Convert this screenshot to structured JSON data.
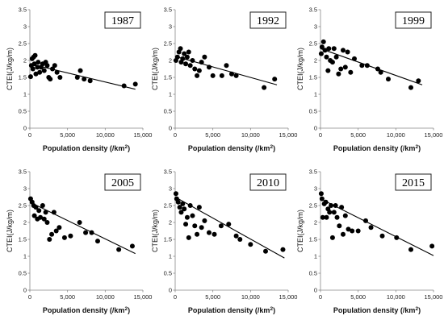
{
  "chart_data": [
    {
      "type": "scatter",
      "year_label": "1987",
      "xlabel": "Population density (/km²)",
      "ylabel": "CTEI(J/kg/m)",
      "xlim": [
        0,
        15000
      ],
      "ylim": [
        0,
        3.5
      ],
      "xticks": [
        "0",
        "5,000",
        "10,000",
        "15,000"
      ],
      "yticks": [
        "0",
        "0.5",
        "1",
        "1.5",
        "2",
        "2.5",
        "3",
        "3.5"
      ],
      "trendline": {
        "x": [
          0,
          14000
        ],
        "y": [
          1.9,
          1.15
        ]
      },
      "points": [
        {
          "x": 100,
          "y": 1.52
        },
        {
          "x": 200,
          "y": 1.85
        },
        {
          "x": 300,
          "y": 2.05
        },
        {
          "x": 400,
          "y": 1.75
        },
        {
          "x": 500,
          "y": 2.1
        },
        {
          "x": 600,
          "y": 1.9
        },
        {
          "x": 700,
          "y": 2.15
        },
        {
          "x": 800,
          "y": 1.6
        },
        {
          "x": 1000,
          "y": 1.8
        },
        {
          "x": 1100,
          "y": 1.95
        },
        {
          "x": 1300,
          "y": 1.65
        },
        {
          "x": 1500,
          "y": 1.8
        },
        {
          "x": 1700,
          "y": 1.9
        },
        {
          "x": 1900,
          "y": 1.7
        },
        {
          "x": 2100,
          "y": 1.95
        },
        {
          "x": 2300,
          "y": 1.85
        },
        {
          "x": 2500,
          "y": 1.5
        },
        {
          "x": 2700,
          "y": 1.45
        },
        {
          "x": 3000,
          "y": 1.75
        },
        {
          "x": 3300,
          "y": 1.85
        },
        {
          "x": 3600,
          "y": 1.65
        },
        {
          "x": 4000,
          "y": 1.5
        },
        {
          "x": 6300,
          "y": 1.5
        },
        {
          "x": 6700,
          "y": 1.7
        },
        {
          "x": 7200,
          "y": 1.45
        },
        {
          "x": 8000,
          "y": 1.4
        },
        {
          "x": 12500,
          "y": 1.25
        },
        {
          "x": 14000,
          "y": 1.3
        }
      ]
    },
    {
      "type": "scatter",
      "year_label": "1992",
      "xlabel": "Population density (/km²)",
      "ylabel": "CTEI(J/kg/m)",
      "xlim": [
        0,
        15000
      ],
      "ylim": [
        0,
        3.5
      ],
      "xticks": [
        "0",
        "5,000",
        "10,000",
        "15,000"
      ],
      "yticks": [
        "0",
        "0.5",
        "1",
        "1.5",
        "2",
        "2.5",
        "3",
        "3.5"
      ],
      "trendline": {
        "x": [
          0,
          13500
        ],
        "y": [
          2.12,
          1.28
        ]
      },
      "points": [
        {
          "x": 100,
          "y": 2.0
        },
        {
          "x": 300,
          "y": 2.1
        },
        {
          "x": 500,
          "y": 2.25
        },
        {
          "x": 700,
          "y": 2.35
        },
        {
          "x": 800,
          "y": 1.95
        },
        {
          "x": 1000,
          "y": 2.05
        },
        {
          "x": 1200,
          "y": 2.2
        },
        {
          "x": 1400,
          "y": 1.9
        },
        {
          "x": 1600,
          "y": 2.1
        },
        {
          "x": 1800,
          "y": 2.25
        },
        {
          "x": 2000,
          "y": 1.85
        },
        {
          "x": 2300,
          "y": 2.0
        },
        {
          "x": 2600,
          "y": 1.75
        },
        {
          "x": 2900,
          "y": 1.55
        },
        {
          "x": 3200,
          "y": 1.7
        },
        {
          "x": 3500,
          "y": 1.95
        },
        {
          "x": 3900,
          "y": 2.1
        },
        {
          "x": 4500,
          "y": 1.8
        },
        {
          "x": 5000,
          "y": 1.55
        },
        {
          "x": 6200,
          "y": 1.55
        },
        {
          "x": 6800,
          "y": 1.85
        },
        {
          "x": 7500,
          "y": 1.6
        },
        {
          "x": 8100,
          "y": 1.55
        },
        {
          "x": 11800,
          "y": 1.2
        },
        {
          "x": 13200,
          "y": 1.45
        }
      ]
    },
    {
      "type": "scatter",
      "year_label": "1999",
      "xlabel": "Population density (/km²)",
      "ylabel": "CTEI(J/kg/m)",
      "xlim": [
        0,
        15000
      ],
      "ylim": [
        0,
        3.5
      ],
      "xticks": [
        "0",
        "5,000",
        "10,000",
        "15,000"
      ],
      "yticks": [
        "0",
        "0.5",
        "1",
        "1.5",
        "2",
        "2.5",
        "3",
        "3.5"
      ],
      "trendline": {
        "x": [
          0,
          13500
        ],
        "y": [
          2.35,
          1.28
        ]
      },
      "points": [
        {
          "x": 100,
          "y": 2.2
        },
        {
          "x": 200,
          "y": 2.4
        },
        {
          "x": 400,
          "y": 2.55
        },
        {
          "x": 600,
          "y": 2.3
        },
        {
          "x": 800,
          "y": 2.1
        },
        {
          "x": 1000,
          "y": 1.7
        },
        {
          "x": 1100,
          "y": 2.35
        },
        {
          "x": 1300,
          "y": 2.0
        },
        {
          "x": 1600,
          "y": 1.95
        },
        {
          "x": 1800,
          "y": 2.35
        },
        {
          "x": 2100,
          "y": 2.1
        },
        {
          "x": 2400,
          "y": 1.6
        },
        {
          "x": 2700,
          "y": 1.75
        },
        {
          "x": 3000,
          "y": 2.3
        },
        {
          "x": 3300,
          "y": 1.8
        },
        {
          "x": 3600,
          "y": 2.25
        },
        {
          "x": 4000,
          "y": 1.65
        },
        {
          "x": 4500,
          "y": 2.05
        },
        {
          "x": 5500,
          "y": 1.85
        },
        {
          "x": 6200,
          "y": 1.85
        },
        {
          "x": 7600,
          "y": 1.75
        },
        {
          "x": 8000,
          "y": 1.65
        },
        {
          "x": 9000,
          "y": 1.45
        },
        {
          "x": 12000,
          "y": 1.2
        },
        {
          "x": 13000,
          "y": 1.4
        }
      ]
    },
    {
      "type": "scatter",
      "year_label": "2005",
      "xlabel": "Population density (/km²)",
      "ylabel": "CTEI(J/kg/m)",
      "xlim": [
        0,
        15000
      ],
      "ylim": [
        0,
        3.5
      ],
      "xticks": [
        "0",
        "5,000",
        "10,000",
        "15,000"
      ],
      "yticks": [
        "0",
        "0.5",
        "1",
        "1.5",
        "2",
        "2.5",
        "3",
        "3.5"
      ],
      "trendline": {
        "x": [
          0,
          14000
        ],
        "y": [
          2.6,
          1.08
        ]
      },
      "points": [
        {
          "x": 100,
          "y": 2.7
        },
        {
          "x": 300,
          "y": 2.6
        },
        {
          "x": 500,
          "y": 2.5
        },
        {
          "x": 600,
          "y": 2.2
        },
        {
          "x": 800,
          "y": 2.45
        },
        {
          "x": 1000,
          "y": 2.1
        },
        {
          "x": 1200,
          "y": 2.35
        },
        {
          "x": 1400,
          "y": 2.15
        },
        {
          "x": 1700,
          "y": 2.5
        },
        {
          "x": 1900,
          "y": 2.1
        },
        {
          "x": 2100,
          "y": 2.3
        },
        {
          "x": 2300,
          "y": 2.0
        },
        {
          "x": 2600,
          "y": 1.5
        },
        {
          "x": 2900,
          "y": 1.65
        },
        {
          "x": 3200,
          "y": 2.3
        },
        {
          "x": 3500,
          "y": 1.75
        },
        {
          "x": 3900,
          "y": 1.85
        },
        {
          "x": 4600,
          "y": 1.55
        },
        {
          "x": 5400,
          "y": 1.6
        },
        {
          "x": 6600,
          "y": 2.0
        },
        {
          "x": 7400,
          "y": 1.7
        },
        {
          "x": 8200,
          "y": 1.7
        },
        {
          "x": 9000,
          "y": 1.45
        },
        {
          "x": 11800,
          "y": 1.2
        },
        {
          "x": 13600,
          "y": 1.3
        }
      ]
    },
    {
      "type": "scatter",
      "year_label": "2010",
      "xlabel": "Population density (/km²)",
      "ylabel": "CTEI(J/kg/m)",
      "xlim": [
        0,
        15000
      ],
      "ylim": [
        0,
        3.5
      ],
      "xticks": [
        "0",
        "5,000",
        "10,000",
        "15,000"
      ],
      "yticks": [
        "0",
        "0.5",
        "1",
        "1.5",
        "2",
        "2.5",
        "3",
        "3.5"
      ],
      "trendline": {
        "x": [
          0,
          14500
        ],
        "y": [
          2.75,
          0.95
        ]
      },
      "points": [
        {
          "x": 100,
          "y": 2.85
        },
        {
          "x": 200,
          "y": 2.7
        },
        {
          "x": 400,
          "y": 2.6
        },
        {
          "x": 600,
          "y": 2.45
        },
        {
          "x": 800,
          "y": 2.3
        },
        {
          "x": 1000,
          "y": 2.55
        },
        {
          "x": 1200,
          "y": 2.4
        },
        {
          "x": 1400,
          "y": 1.95
        },
        {
          "x": 1600,
          "y": 2.15
        },
        {
          "x": 1800,
          "y": 1.55
        },
        {
          "x": 2000,
          "y": 2.5
        },
        {
          "x": 2300,
          "y": 2.2
        },
        {
          "x": 2600,
          "y": 1.9
        },
        {
          "x": 2900,
          "y": 1.65
        },
        {
          "x": 3200,
          "y": 2.45
        },
        {
          "x": 3500,
          "y": 1.85
        },
        {
          "x": 3900,
          "y": 2.05
        },
        {
          "x": 4500,
          "y": 1.7
        },
        {
          "x": 5200,
          "y": 1.65
        },
        {
          "x": 6100,
          "y": 1.9
        },
        {
          "x": 7100,
          "y": 1.95
        },
        {
          "x": 8100,
          "y": 1.6
        },
        {
          "x": 8600,
          "y": 1.5
        },
        {
          "x": 10000,
          "y": 1.35
        },
        {
          "x": 12000,
          "y": 1.15
        },
        {
          "x": 14300,
          "y": 1.2
        }
      ]
    },
    {
      "type": "scatter",
      "year_label": "2015",
      "xlabel": "Population density (/km²)",
      "ylabel": "CTEI(J/kg/m)",
      "xlim": [
        0,
        15000
      ],
      "ylim": [
        0,
        3.5
      ],
      "xticks": [
        "0",
        "5,000",
        "10,000",
        "15,000"
      ],
      "yticks": [
        "0",
        "0.5",
        "1",
        "1.5",
        "2",
        "2.5",
        "3",
        "3.5"
      ],
      "trendline": {
        "x": [
          0,
          15000
        ],
        "y": [
          2.7,
          1.02
        ]
      },
      "points": [
        {
          "x": 100,
          "y": 2.85
        },
        {
          "x": 200,
          "y": 2.7
        },
        {
          "x": 300,
          "y": 2.15
        },
        {
          "x": 500,
          "y": 2.55
        },
        {
          "x": 700,
          "y": 2.6
        },
        {
          "x": 800,
          "y": 2.15
        },
        {
          "x": 1000,
          "y": 2.4
        },
        {
          "x": 1200,
          "y": 2.3
        },
        {
          "x": 1400,
          "y": 2.5
        },
        {
          "x": 1600,
          "y": 1.55
        },
        {
          "x": 1800,
          "y": 2.3
        },
        {
          "x": 2000,
          "y": 2.5
        },
        {
          "x": 2200,
          "y": 2.15
        },
        {
          "x": 2500,
          "y": 1.9
        },
        {
          "x": 2800,
          "y": 2.45
        },
        {
          "x": 3000,
          "y": 1.65
        },
        {
          "x": 3300,
          "y": 2.2
        },
        {
          "x": 3700,
          "y": 1.8
        },
        {
          "x": 4200,
          "y": 1.75
        },
        {
          "x": 5000,
          "y": 1.75
        },
        {
          "x": 6000,
          "y": 2.05
        },
        {
          "x": 6700,
          "y": 1.85
        },
        {
          "x": 8200,
          "y": 1.6
        },
        {
          "x": 10100,
          "y": 1.55
        },
        {
          "x": 12000,
          "y": 1.2
        },
        {
          "x": 14800,
          "y": 1.3
        }
      ]
    }
  ]
}
